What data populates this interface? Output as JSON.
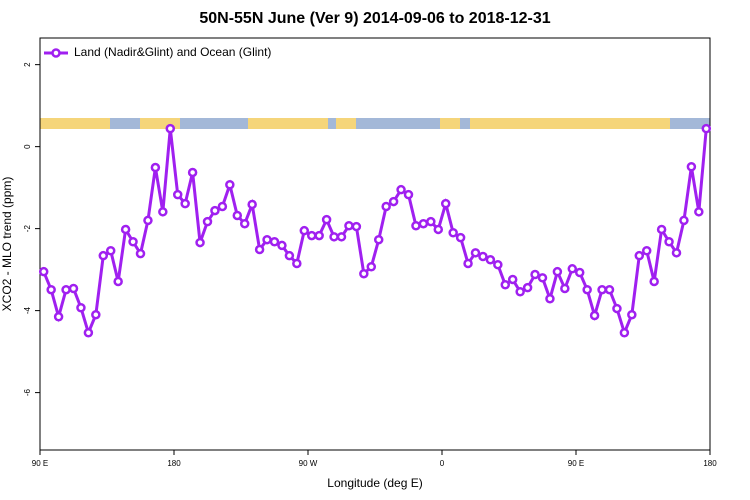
{
  "chart_data": {
    "type": "line",
    "title": "50N-55N June (Ver 9)   2014-09-06 to 2018-12-31",
    "x_label": "Longitude (deg E)",
    "y_label": "XCO2 - MLO trend (ppm)",
    "xlim": [
      90,
      540
    ],
    "ylim": [
      -7.4,
      2.65
    ],
    "xticks": [
      {
        "value": 90,
        "label": "90 E"
      },
      180,
      {
        "value": 270,
        "label": "90 W"
      },
      {
        "value": 360,
        "label": "0"
      },
      {
        "value": 450,
        "label": "90 E"
      },
      180
    ],
    "yticks": [
      -6,
      -4,
      -2,
      0,
      2
    ],
    "legend": "top-left",
    "x": [
      92.5,
      97.5,
      102.5,
      107.5,
      112.5,
      117.5,
      122.5,
      127.5,
      132.5,
      137.5,
      142.5,
      147.5,
      152.5,
      157.5,
      162.5,
      167.5,
      172.5,
      177.5,
      182.5,
      187.5,
      192.5,
      197.5,
      202.5,
      207.5,
      212.5,
      217.5,
      222.5,
      227.5,
      232.5,
      237.5,
      242.5,
      247.5,
      252.5,
      257.5,
      262.5,
      267.5,
      272.5,
      277.5,
      282.5,
      287.5,
      292.5,
      297.5,
      302.5,
      307.5,
      312.5,
      317.5,
      322.5,
      327.5,
      332.5,
      337.5,
      342.5,
      347.5,
      352.5,
      357.5,
      362.5,
      367.5,
      372.5,
      377.5,
      382.5,
      387.5,
      392.5,
      397.5,
      402.5,
      407.5,
      412.5,
      417.5,
      422.5,
      427.5,
      432.5,
      437.5,
      442.5,
      447.5,
      452.5,
      457.5,
      462.5,
      467.5,
      472.5,
      477.5,
      482.5,
      487.5,
      492.5,
      497.5,
      502.5,
      507.5,
      512.5,
      517.5,
      522.5,
      527.5,
      532.5,
      537.5
    ],
    "series": [
      {
        "name": "Land (Nadir&Glint) and Ocean (Glint)",
        "color": "#a020f0",
        "values": [
          -3.05,
          -3.49,
          -4.15,
          -3.49,
          -3.46,
          -3.93,
          -4.54,
          -4.1,
          -2.66,
          -2.54,
          -3.29,
          -2.02,
          -2.32,
          -2.61,
          -1.8,
          -0.51,
          -1.59,
          0.44,
          -1.17,
          -1.39,
          -0.63,
          -2.34,
          -1.83,
          -1.56,
          -1.46,
          -0.93,
          -1.68,
          -1.88,
          -1.41,
          -2.51,
          -2.27,
          -2.32,
          -2.41,
          -2.66,
          -2.85,
          -2.05,
          -2.17,
          -2.17,
          -1.78,
          -2.2,
          -2.2,
          -1.93,
          -1.95,
          -3.1,
          -2.93,
          -2.27,
          -1.46,
          -1.34,
          -1.05,
          -1.17,
          -1.93,
          -1.88,
          -1.83,
          -2.02,
          -1.39,
          -2.1,
          -2.22,
          -2.85,
          -2.59,
          -2.68,
          -2.76,
          -2.88,
          -3.37,
          -3.24,
          -3.54,
          -3.44,
          -3.12,
          -3.2,
          -3.71,
          -3.05,
          -3.46,
          -2.98,
          -3.07,
          -3.49,
          -4.12,
          -3.49,
          -3.49,
          -3.95,
          -4.54,
          -4.1,
          -2.66,
          -2.54,
          -3.29,
          -2.02,
          -2.32,
          -2.59,
          -1.8,
          -0.49,
          -1.59,
          0.44
        ]
      }
    ]
  }
}
